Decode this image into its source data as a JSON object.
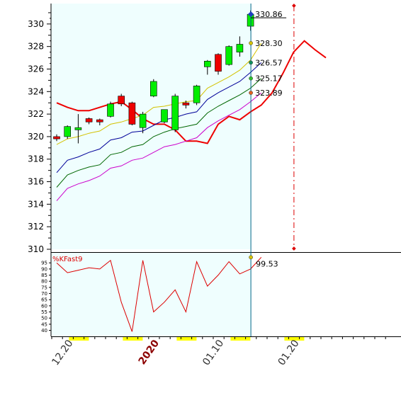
{
  "chart_data": [
    {
      "type": "candlestick",
      "panel": "price",
      "ylim": [
        310,
        331.5
      ],
      "yticks": [
        "310",
        "312",
        "314",
        "316",
        "318",
        "320",
        "322",
        "324",
        "326",
        "328",
        "330"
      ],
      "right_labels": [
        {
          "text": "330.86",
          "value": 330.86,
          "color": "#1f3fbf"
        },
        {
          "text": "328.30",
          "value": 328.3,
          "color": "#d4c200"
        },
        {
          "text": "326.57",
          "value": 326.57,
          "color": "#0f8f5f"
        },
        {
          "text": "325.17",
          "value": 325.17,
          "color": "#2ec02e"
        },
        {
          "text": "323.89",
          "value": 323.89,
          "color": "#e06020"
        }
      ],
      "candles": [
        {
          "o": 320.0,
          "h": 320.2,
          "l": 319.6,
          "c": 319.8
        },
        {
          "o": 320.0,
          "h": 321.0,
          "l": 319.8,
          "c": 320.9
        },
        {
          "o": 320.6,
          "h": 322.0,
          "l": 319.4,
          "c": 320.8
        },
        {
          "o": 321.6,
          "h": 321.7,
          "l": 321.1,
          "c": 321.3
        },
        {
          "o": 321.5,
          "h": 321.6,
          "l": 321.0,
          "c": 321.3
        },
        {
          "o": 321.8,
          "h": 323.1,
          "l": 321.7,
          "c": 322.9
        },
        {
          "o": 323.6,
          "h": 323.8,
          "l": 322.7,
          "c": 322.9
        },
        {
          "o": 323.0,
          "h": 323.1,
          "l": 321.0,
          "c": 321.1
        },
        {
          "o": 320.8,
          "h": 322.2,
          "l": 320.3,
          "c": 322.0
        },
        {
          "o": 323.6,
          "h": 325.1,
          "l": 323.5,
          "c": 324.9
        },
        {
          "o": 321.3,
          "h": 322.4,
          "l": 321.2,
          "c": 322.4
        },
        {
          "o": 320.6,
          "h": 323.8,
          "l": 320.4,
          "c": 323.6
        },
        {
          "o": 323.0,
          "h": 323.2,
          "l": 322.5,
          "c": 322.8
        },
        {
          "o": 323.0,
          "h": 324.6,
          "l": 322.8,
          "c": 324.5
        },
        {
          "o": 326.2,
          "h": 326.8,
          "l": 325.5,
          "c": 326.7
        },
        {
          "o": 327.3,
          "h": 327.4,
          "l": 325.5,
          "c": 325.8
        },
        {
          "o": 326.4,
          "h": 328.1,
          "l": 326.3,
          "c": 328.0
        },
        {
          "o": 327.5,
          "h": 328.9,
          "l": 327.1,
          "c": 328.2
        },
        {
          "o": 329.8,
          "h": 331.2,
          "l": 329.4,
          "c": 330.86
        }
      ],
      "lines": [
        {
          "name": "",
          "color": "#ee0000",
          "values": [
            323.0,
            322.6,
            322.3,
            322.3,
            322.6,
            322.9,
            323.1,
            322.4,
            321.6,
            321.1,
            321.1,
            320.6,
            319.6,
            319.6,
            319.4,
            321.1,
            321.8,
            321.5,
            322.2,
            322.8,
            323.89,
            325.6,
            327.5,
            328.5,
            327.7,
            327.0
          ]
        },
        {
          "name": "",
          "color": "#d4c200",
          "values": [
            319.3,
            319.8,
            320.0,
            320.3,
            320.5,
            321.1,
            321.3,
            321.6,
            321.9,
            322.6,
            322.7,
            322.9,
            323.1,
            323.2,
            324.3,
            324.8,
            325.3,
            325.9,
            326.8,
            328.3
          ]
        },
        {
          "name": "",
          "color": "#000099",
          "values": [
            316.8,
            317.9,
            318.2,
            318.6,
            318.9,
            319.7,
            319.9,
            320.4,
            320.5,
            321.0,
            321.5,
            321.7,
            322.0,
            322.2,
            323.3,
            323.9,
            324.4,
            324.9,
            325.7,
            326.57
          ]
        },
        {
          "name": "",
          "color": "#006600",
          "values": [
            315.5,
            316.6,
            317.0,
            317.3,
            317.5,
            318.4,
            318.6,
            319.1,
            319.3,
            320.0,
            320.4,
            320.7,
            320.9,
            321.1,
            322.1,
            322.7,
            323.2,
            323.7,
            324.3,
            325.17
          ]
        },
        {
          "name": "",
          "color": "#cc00cc",
          "values": [
            314.3,
            315.4,
            315.8,
            316.1,
            316.5,
            317.2,
            317.4,
            317.9,
            318.1,
            318.6,
            319.1,
            319.3,
            319.6,
            319.9,
            320.8,
            321.4,
            321.9,
            322.4,
            323.1,
            323.89
          ]
        }
      ],
      "last_index": 18,
      "future_index": 22
    },
    {
      "type": "line",
      "panel": "oscillator",
      "title": "%KFast9",
      "ylim": [
        38,
        98
      ],
      "yticks": [
        "95",
        "90",
        "85",
        "80",
        "75",
        "70",
        "65",
        "60",
        "55",
        "50",
        "45",
        "40"
      ],
      "values": [
        95,
        87,
        89,
        91,
        90,
        97,
        63,
        39,
        97,
        55,
        63,
        73,
        55,
        96,
        76,
        85,
        96,
        86,
        90,
        99.53
      ],
      "last_label": "99.53",
      "color": "#dd0000"
    }
  ],
  "x_axis": {
    "labels": [
      {
        "text": "12.20",
        "index": 1,
        "color": "#333333",
        "bold": false
      },
      {
        "text": "2020",
        "index": 9,
        "color": "#8b0000",
        "bold": true
      },
      {
        "text": "01.10",
        "index": 15,
        "color": "#333333",
        "bold": false
      },
      {
        "text": "01.20",
        "index": 22,
        "color": "#333333",
        "bold": false
      }
    ],
    "weekend_marks": [
      2,
      7,
      12,
      17,
      22
    ]
  },
  "colors": {
    "plot_bg": "#effefe",
    "up": "#00ee00",
    "down": "#ee0000",
    "cursor": "#006688",
    "future_marker": "#dd0000"
  }
}
